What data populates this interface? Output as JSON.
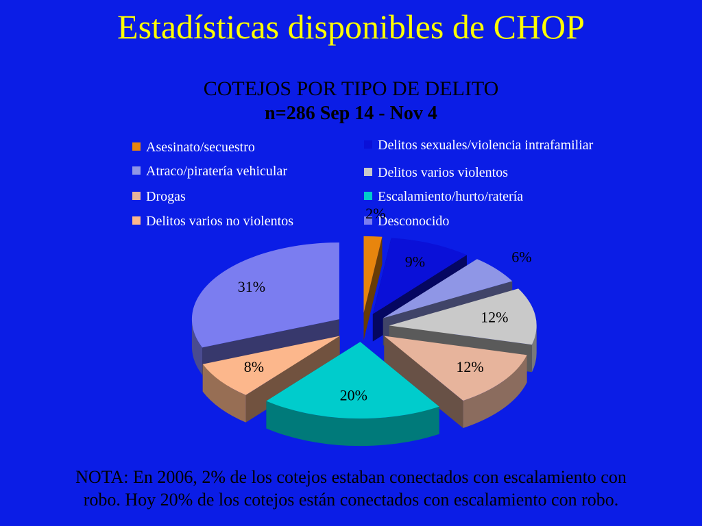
{
  "slide_title": "Estadísticas disponibles de CHOP",
  "note": {
    "line1": "NOTA: En 2006, 2% de los cotejos estaban conectados con escalamiento con",
    "line2": "robo. Hoy  20% de los cotejos están conectados con escalamiento con robo."
  },
  "chart_data": {
    "type": "pie",
    "title": "COTEJOS POR TIPO DE DELITO",
    "subtitle": "n=286  Sep 14 - Nov 4",
    "legend_position": "top",
    "slices": [
      {
        "name": "Asesinato/secuestro",
        "value": 2,
        "label": "2%",
        "color": "#e8850d"
      },
      {
        "name": "Delitos sexuales/violencia intrafamiliar",
        "value": 9,
        "label": "9%",
        "color": "#0a10d8"
      },
      {
        "name": "Atraco/piratería vehicular",
        "value": 6,
        "label": "6%",
        "color": "#8f96e6"
      },
      {
        "name": "Delitos varios violentos",
        "value": 12,
        "label": "12%",
        "color": "#c9c9c9"
      },
      {
        "name": "Drogas",
        "value": 12,
        "label": "12%",
        "color": "#e7b49c"
      },
      {
        "name": "Escalamiento/hurto/ratería",
        "value": 20,
        "label": "20%",
        "color": "#00cccc"
      },
      {
        "name": "Delitos varios no violentos",
        "value": 8,
        "label": "8%",
        "color": "#fcb78c"
      },
      {
        "name": "Desconocido",
        "value": 31,
        "label": "31%",
        "color": "#7b7df0"
      }
    ]
  }
}
